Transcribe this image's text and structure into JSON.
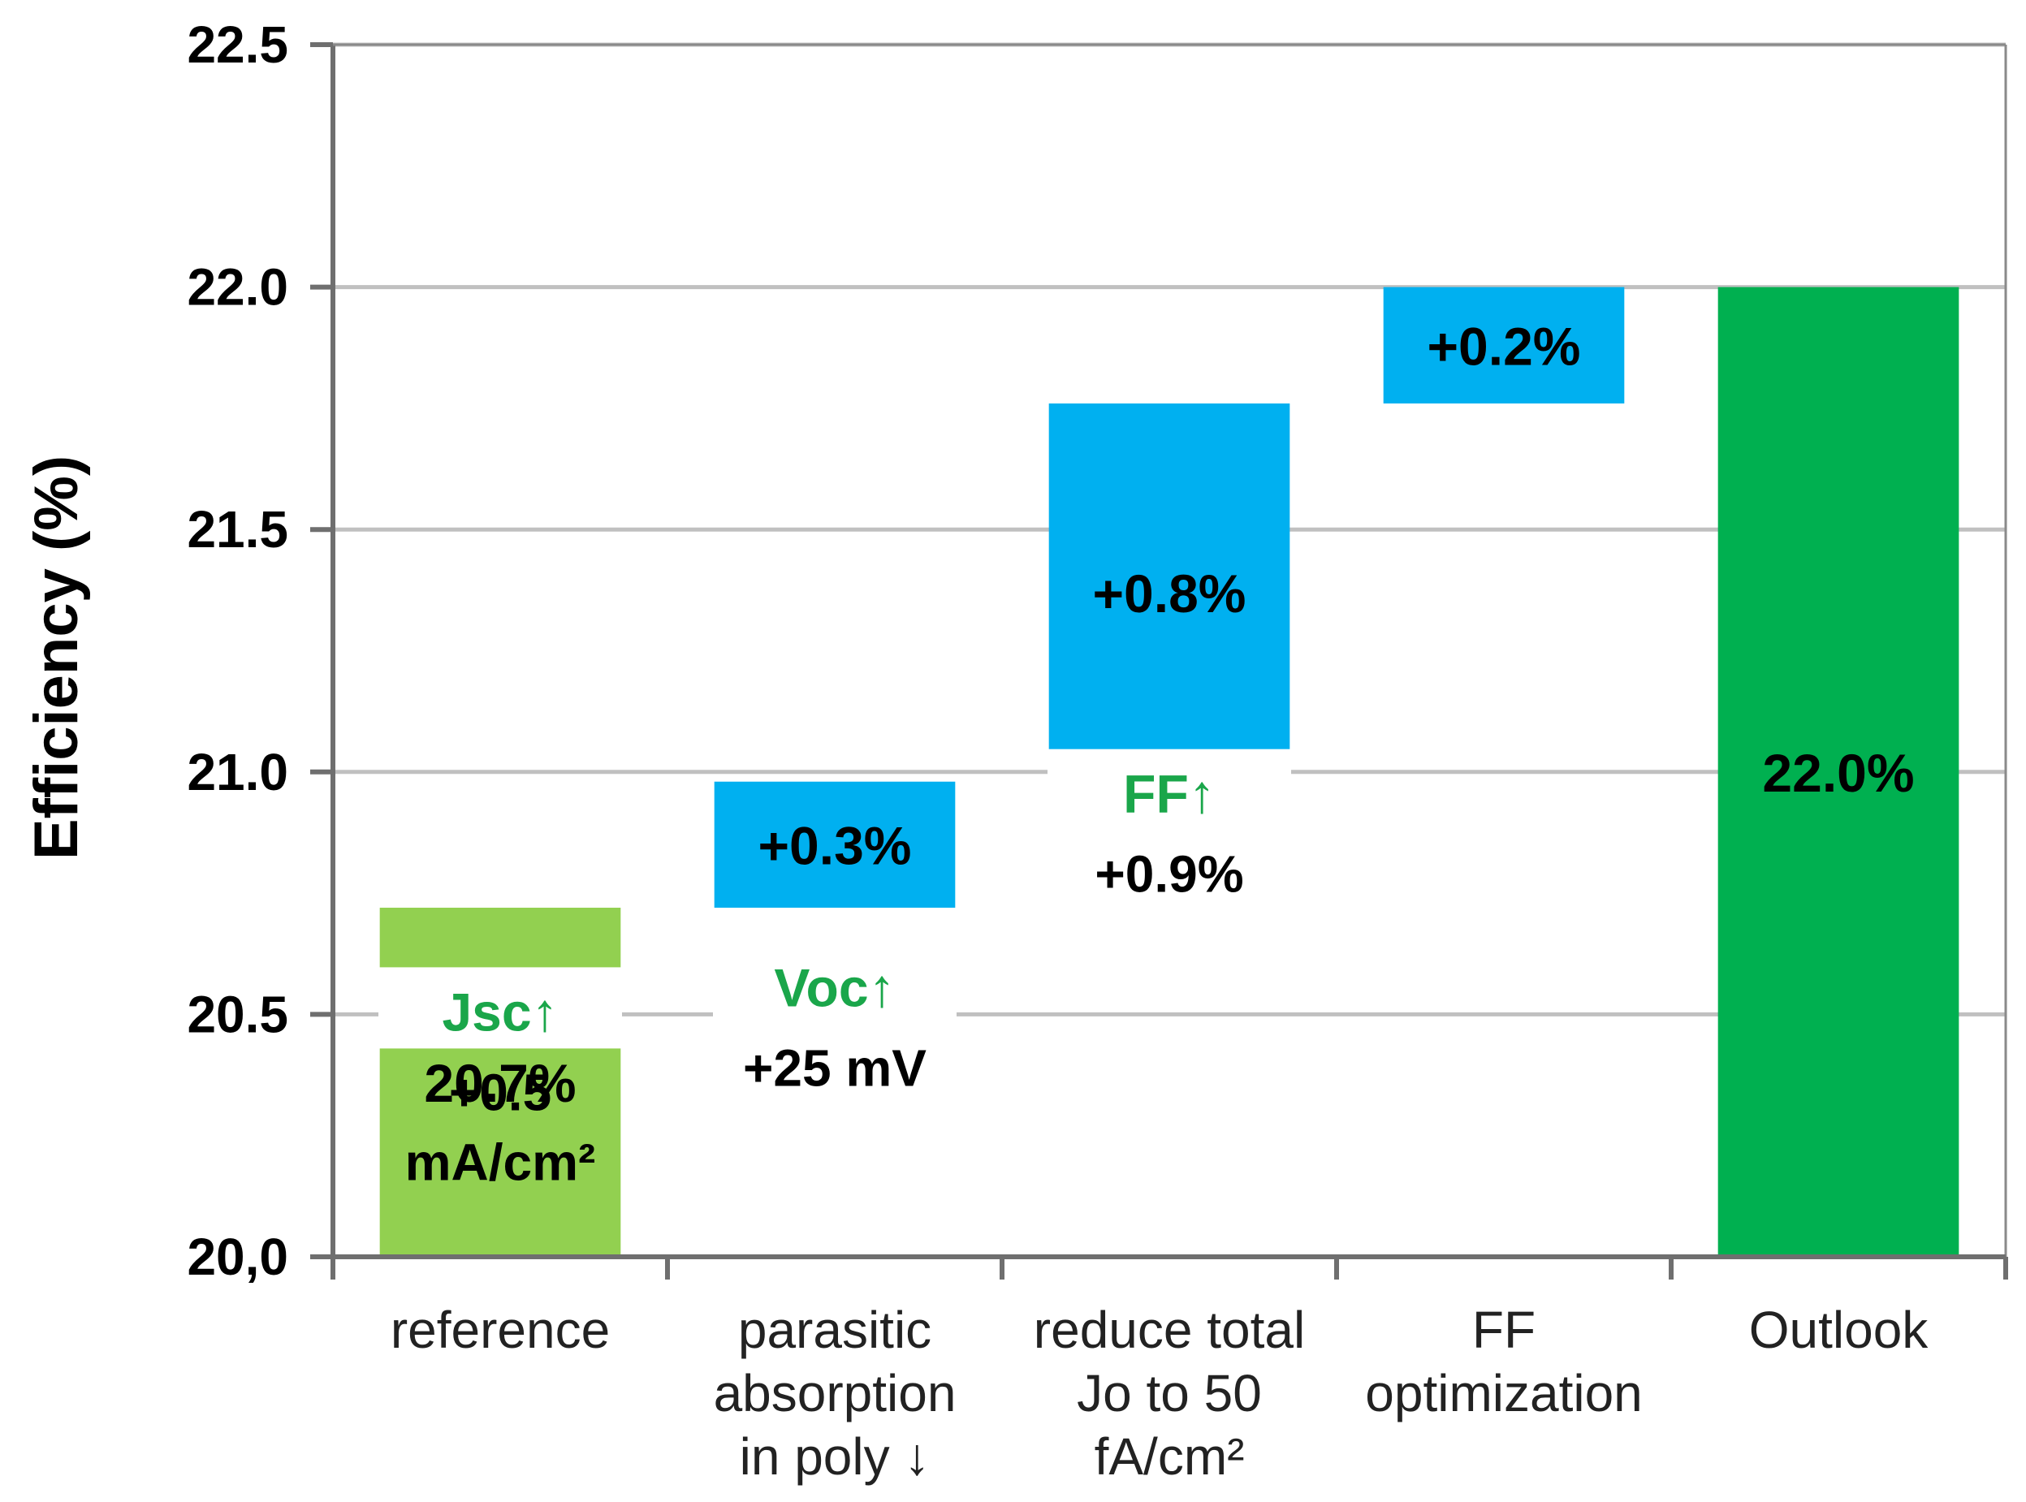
{
  "chart_data": {
    "type": "bar",
    "subtype": "waterfall",
    "title": "",
    "xlabel": "",
    "ylabel": "Efficiency (%)",
    "ylim": [
      20.0,
      22.5
    ],
    "yticks": [
      "20,0",
      "20.5",
      "21.0",
      "21.5",
      "22.0",
      "22.5"
    ],
    "yticks_values": [
      20.0,
      20.5,
      21.0,
      21.5,
      22.0,
      22.5
    ],
    "grid": true,
    "categories": [
      [
        "reference"
      ],
      [
        "parasitic",
        "absorption",
        "in poly ↓"
      ],
      [
        "reduce total",
        "Jo to 50",
        "fA/cm²"
      ],
      [
        "FF",
        "optimization"
      ],
      [
        "Outlook"
      ]
    ],
    "bars": [
      {
        "kind": "total",
        "base": 20.0,
        "top": 20.72,
        "label": "20.7%",
        "color": "#92d050"
      },
      {
        "kind": "delta",
        "base": 20.72,
        "top": 20.98,
        "label": "+0.3%",
        "color": "#00b0f0"
      },
      {
        "kind": "delta",
        "base": 20.98,
        "top": 21.76,
        "label": "+0.8%",
        "color": "#00b0f0"
      },
      {
        "kind": "delta",
        "base": 21.76,
        "top": 22.0,
        "label": "+0.2%",
        "color": "#00b0f0"
      },
      {
        "kind": "total",
        "base": 20.0,
        "top": 22.0,
        "label": "22.0%",
        "color": "#00b050"
      }
    ],
    "annotations": [
      {
        "main": "Jsc↑",
        "sub": [
          "+0.5",
          "mA/cm²"
        ],
        "at": 20.5
      },
      {
        "main": "Voc↑",
        "sub": [
          "+25 mV"
        ],
        "at": 20.55
      },
      {
        "main": "FF↑",
        "sub": [
          "+0.9%"
        ],
        "at": 20.95
      },
      null,
      null
    ],
    "annotation_color": "#1aa64a"
  }
}
